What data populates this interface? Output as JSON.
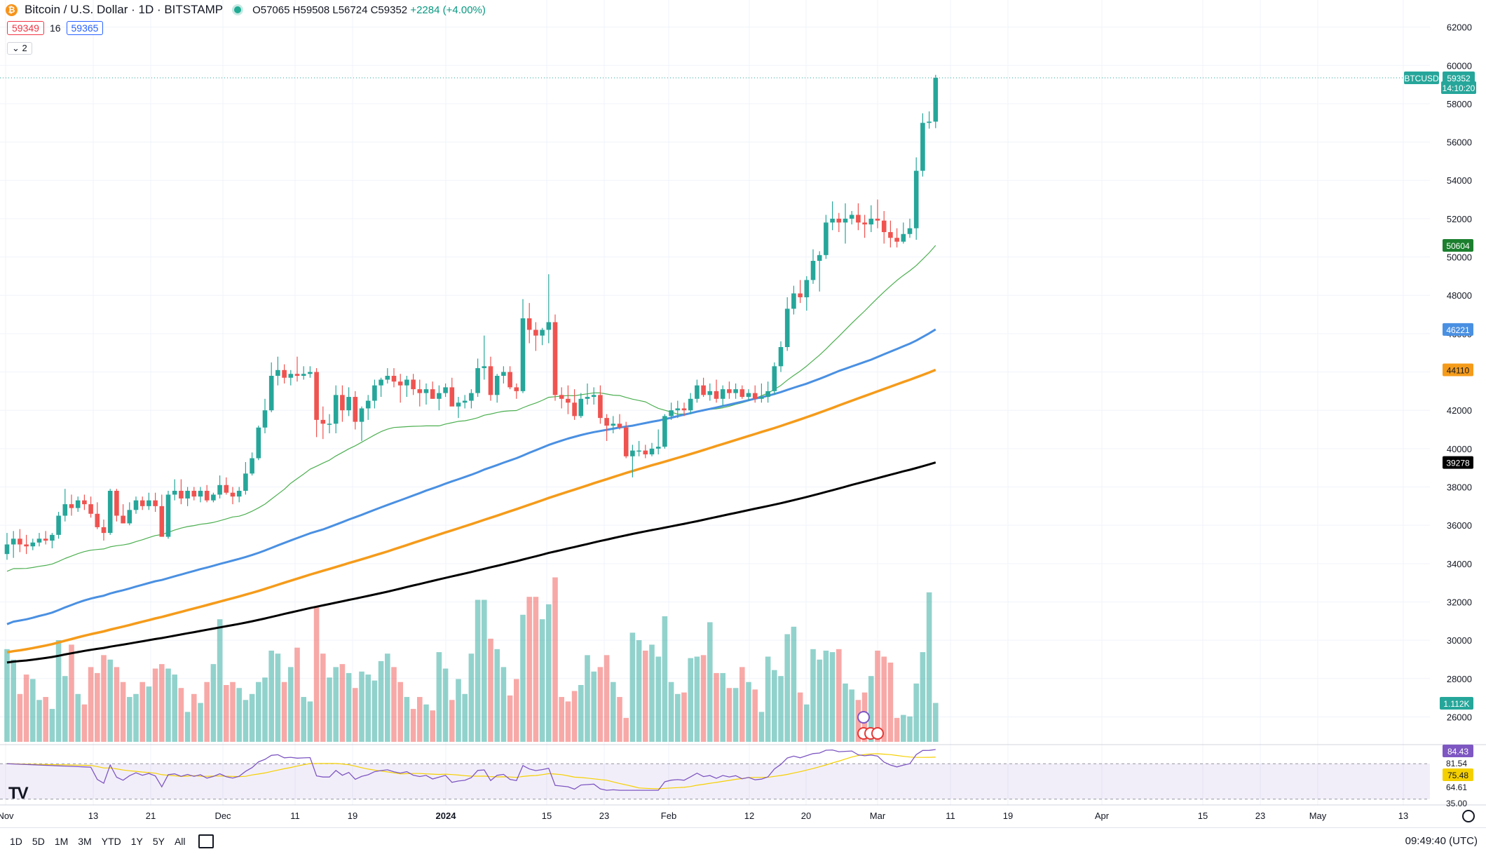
{
  "header": {
    "title": "Bitcoin / U.S. Dollar · 1D · BITSTAMP",
    "open": "O57065",
    "high": "H59508",
    "low": "L56724",
    "close": "C59352",
    "change": "+2284 (+4.00%)",
    "sell_price": "59349",
    "spread": "16",
    "buy_price": "59365",
    "indicators_toggle": "⌄ 2"
  },
  "colors": {
    "up": "#26a69a",
    "down": "#ef5350",
    "ma20": "#4caf50",
    "ma50": "#4a90e2",
    "ma100": "#f59b1a",
    "ma200": "#000000",
    "rsi": "#7e57c2",
    "rsi_ma": "#f5d000"
  },
  "price_axis": {
    "ticks": [
      26000,
      28000,
      30000,
      32000,
      34000,
      36000,
      38000,
      40000,
      42000,
      44000,
      46000,
      48000,
      50000,
      52000,
      54000,
      56000,
      58000,
      60000,
      62000
    ],
    "min": 24700,
    "max": 62900
  },
  "price_badges": {
    "symbol": "BTCUSD",
    "last": "59352",
    "countdown": "14:10:20",
    "ma20": "50604",
    "ma50": "46221",
    "ma100": "44110",
    "ma200": "39278",
    "volume": "1.112K"
  },
  "rsi_axis": {
    "labels": [
      "84.43",
      "81.54",
      "75.48",
      "64.61",
      "35.00"
    ]
  },
  "time_axis": {
    "labels": [
      "Nov",
      "13",
      "21",
      "Dec",
      "11",
      "19",
      "2024",
      "15",
      "23",
      "Feb",
      "12",
      "20",
      "Mar",
      "11",
      "19",
      "Apr",
      "15",
      "23",
      "May",
      "13"
    ]
  },
  "bottom_bar": {
    "ranges": [
      "1D",
      "5D",
      "1M",
      "3M",
      "YTD",
      "1Y",
      "5Y",
      "All"
    ],
    "clock": "09:49:40 (UTC)"
  },
  "chart_data": {
    "type": "candlestick",
    "title": "Bitcoin / U.S. Dollar · 1D · BITSTAMP",
    "candles": [
      {
        "o": 34500,
        "h": 35600,
        "l": 34200,
        "c": 35000,
        "v": 0.62
      },
      {
        "o": 35000,
        "h": 35700,
        "l": 34300,
        "c": 35300,
        "v": 0.55
      },
      {
        "o": 35300,
        "h": 35800,
        "l": 34600,
        "c": 35000,
        "v": 0.32
      },
      {
        "o": 35000,
        "h": 35500,
        "l": 34500,
        "c": 34900,
        "v": 0.45
      },
      {
        "o": 34900,
        "h": 35300,
        "l": 34700,
        "c": 35100,
        "v": 0.42
      },
      {
        "o": 35100,
        "h": 35600,
        "l": 34900,
        "c": 35300,
        "v": 0.28
      },
      {
        "o": 35300,
        "h": 35700,
        "l": 35000,
        "c": 35200,
        "v": 0.3
      },
      {
        "o": 35200,
        "h": 35600,
        "l": 34800,
        "c": 35500,
        "v": 0.22
      },
      {
        "o": 35500,
        "h": 36700,
        "l": 35300,
        "c": 36500,
        "v": 0.68
      },
      {
        "o": 36500,
        "h": 37900,
        "l": 36200,
        "c": 37100,
        "v": 0.44
      },
      {
        "o": 37100,
        "h": 37600,
        "l": 36500,
        "c": 36900,
        "v": 0.65
      },
      {
        "o": 36900,
        "h": 37500,
        "l": 36700,
        "c": 37300,
        "v": 0.32
      },
      {
        "o": 37300,
        "h": 37600,
        "l": 36800,
        "c": 37100,
        "v": 0.25
      },
      {
        "o": 37100,
        "h": 37500,
        "l": 36400,
        "c": 36600,
        "v": 0.5
      },
      {
        "o": 36600,
        "h": 37200,
        "l": 35800,
        "c": 35900,
        "v": 0.46
      },
      {
        "o": 35900,
        "h": 36300,
        "l": 35200,
        "c": 35600,
        "v": 0.58
      },
      {
        "o": 35600,
        "h": 37900,
        "l": 35500,
        "c": 37800,
        "v": 0.55
      },
      {
        "o": 37800,
        "h": 37900,
        "l": 36200,
        "c": 36500,
        "v": 0.5
      },
      {
        "o": 36500,
        "h": 37100,
        "l": 36100,
        "c": 36100,
        "v": 0.4
      },
      {
        "o": 36100,
        "h": 37200,
        "l": 36000,
        "c": 36800,
        "v": 0.3
      },
      {
        "o": 36800,
        "h": 37500,
        "l": 36600,
        "c": 37300,
        "v": 0.32
      },
      {
        "o": 37300,
        "h": 37500,
        "l": 36800,
        "c": 37000,
        "v": 0.4
      },
      {
        "o": 37000,
        "h": 37700,
        "l": 36800,
        "c": 37300,
        "v": 0.37
      },
      {
        "o": 37300,
        "h": 37700,
        "l": 36700,
        "c": 37000,
        "v": 0.49
      },
      {
        "o": 37000,
        "h": 37600,
        "l": 35400,
        "c": 35400,
        "v": 0.52
      },
      {
        "o": 35400,
        "h": 37800,
        "l": 35300,
        "c": 37600,
        "v": 0.49
      },
      {
        "o": 37600,
        "h": 38400,
        "l": 37300,
        "c": 37800,
        "v": 0.45
      },
      {
        "o": 37800,
        "h": 38400,
        "l": 37100,
        "c": 37400,
        "v": 0.36
      },
      {
        "o": 37400,
        "h": 38000,
        "l": 37000,
        "c": 37800,
        "v": 0.2
      },
      {
        "o": 37800,
        "h": 38000,
        "l": 37300,
        "c": 37500,
        "v": 0.32
      },
      {
        "o": 37500,
        "h": 38000,
        "l": 37200,
        "c": 37800,
        "v": 0.26
      },
      {
        "o": 37800,
        "h": 38100,
        "l": 37200,
        "c": 37300,
        "v": 0.4
      },
      {
        "o": 37300,
        "h": 37700,
        "l": 37200,
        "c": 37600,
        "v": 0.52
      },
      {
        "o": 37600,
        "h": 38600,
        "l": 37400,
        "c": 38100,
        "v": 0.82
      },
      {
        "o": 38100,
        "h": 38500,
        "l": 37600,
        "c": 37700,
        "v": 0.38
      },
      {
        "o": 37700,
        "h": 38000,
        "l": 37100,
        "c": 37500,
        "v": 0.4
      },
      {
        "o": 37500,
        "h": 38000,
        "l": 37200,
        "c": 37800,
        "v": 0.36
      },
      {
        "o": 37800,
        "h": 39300,
        "l": 37600,
        "c": 38700,
        "v": 0.28
      },
      {
        "o": 38700,
        "h": 39800,
        "l": 38600,
        "c": 39500,
        "v": 0.32
      },
      {
        "o": 39500,
        "h": 41200,
        "l": 39400,
        "c": 41100,
        "v": 0.4
      },
      {
        "o": 41100,
        "h": 42600,
        "l": 40800,
        "c": 42000,
        "v": 0.43
      },
      {
        "o": 42000,
        "h": 44500,
        "l": 41900,
        "c": 43800,
        "v": 0.61
      },
      {
        "o": 43800,
        "h": 44800,
        "l": 43300,
        "c": 44100,
        "v": 0.59
      },
      {
        "o": 44100,
        "h": 44400,
        "l": 43400,
        "c": 43700,
        "v": 0.4
      },
      {
        "o": 43700,
        "h": 44100,
        "l": 43300,
        "c": 43900,
        "v": 0.5
      },
      {
        "o": 43900,
        "h": 44800,
        "l": 43500,
        "c": 43800,
        "v": 0.63
      },
      {
        "o": 43800,
        "h": 44300,
        "l": 43600,
        "c": 43900,
        "v": 0.3
      },
      {
        "o": 43900,
        "h": 44300,
        "l": 43700,
        "c": 44000,
        "v": 0.27
      },
      {
        "o": 44000,
        "h": 44200,
        "l": 40600,
        "c": 41500,
        "v": 0.9
      },
      {
        "o": 41500,
        "h": 42200,
        "l": 40500,
        "c": 41300,
        "v": 0.59
      },
      {
        "o": 41300,
        "h": 41800,
        "l": 40800,
        "c": 41300,
        "v": 0.43
      },
      {
        "o": 41300,
        "h": 43300,
        "l": 40800,
        "c": 42800,
        "v": 0.5
      },
      {
        "o": 42800,
        "h": 43300,
        "l": 41400,
        "c": 42000,
        "v": 0.52
      },
      {
        "o": 42000,
        "h": 43200,
        "l": 41700,
        "c": 42700,
        "v": 0.46
      },
      {
        "o": 42700,
        "h": 43000,
        "l": 41000,
        "c": 41400,
        "v": 0.36
      },
      {
        "o": 41400,
        "h": 42200,
        "l": 40400,
        "c": 42100,
        "v": 0.47
      },
      {
        "o": 42100,
        "h": 42800,
        "l": 41500,
        "c": 42500,
        "v": 0.45
      },
      {
        "o": 42500,
        "h": 43600,
        "l": 42100,
        "c": 43300,
        "v": 0.41
      },
      {
        "o": 43300,
        "h": 43700,
        "l": 42700,
        "c": 43600,
        "v": 0.54
      },
      {
        "o": 43600,
        "h": 44200,
        "l": 43400,
        "c": 43800,
        "v": 0.59
      },
      {
        "o": 43800,
        "h": 44200,
        "l": 43200,
        "c": 43500,
        "v": 0.5
      },
      {
        "o": 43500,
        "h": 43900,
        "l": 42400,
        "c": 43300,
        "v": 0.4
      },
      {
        "o": 43300,
        "h": 43800,
        "l": 42700,
        "c": 43600,
        "v": 0.3
      },
      {
        "o": 43600,
        "h": 43900,
        "l": 42800,
        "c": 43100,
        "v": 0.22
      },
      {
        "o": 43100,
        "h": 43600,
        "l": 42200,
        "c": 42900,
        "v": 0.3
      },
      {
        "o": 42900,
        "h": 43400,
        "l": 42300,
        "c": 43100,
        "v": 0.25
      },
      {
        "o": 43100,
        "h": 43500,
        "l": 42600,
        "c": 42600,
        "v": 0.21
      },
      {
        "o": 42600,
        "h": 43300,
        "l": 42000,
        "c": 42900,
        "v": 0.6
      },
      {
        "o": 42900,
        "h": 43400,
        "l": 42700,
        "c": 43200,
        "v": 0.49
      },
      {
        "o": 43200,
        "h": 43700,
        "l": 42300,
        "c": 42200,
        "v": 0.28
      },
      {
        "o": 42200,
        "h": 42700,
        "l": 41600,
        "c": 42400,
        "v": 0.42
      },
      {
        "o": 42400,
        "h": 42800,
        "l": 42100,
        "c": 42500,
        "v": 0.32
      },
      {
        "o": 42500,
        "h": 43100,
        "l": 42100,
        "c": 42900,
        "v": 0.59
      },
      {
        "o": 42900,
        "h": 44700,
        "l": 42700,
        "c": 44200,
        "v": 0.95
      },
      {
        "o": 44200,
        "h": 45900,
        "l": 43600,
        "c": 44300,
        "v": 0.95
      },
      {
        "o": 44300,
        "h": 44800,
        "l": 42500,
        "c": 42800,
        "v": 0.69
      },
      {
        "o": 42800,
        "h": 43900,
        "l": 42400,
        "c": 43800,
        "v": 0.62
      },
      {
        "o": 43800,
        "h": 44300,
        "l": 43400,
        "c": 44000,
        "v": 0.5
      },
      {
        "o": 44000,
        "h": 44300,
        "l": 43100,
        "c": 43200,
        "v": 0.31
      },
      {
        "o": 43200,
        "h": 43400,
        "l": 42600,
        "c": 43000,
        "v": 0.42
      },
      {
        "o": 43000,
        "h": 47800,
        "l": 42900,
        "c": 46800,
        "v": 0.85
      },
      {
        "o": 46800,
        "h": 47600,
        "l": 45500,
        "c": 46200,
        "v": 0.97
      },
      {
        "o": 46200,
        "h": 46600,
        "l": 45100,
        "c": 45900,
        "v": 0.97
      },
      {
        "o": 45900,
        "h": 46300,
        "l": 45400,
        "c": 46200,
        "v": 0.82
      },
      {
        "o": 46200,
        "h": 49100,
        "l": 45500,
        "c": 46600,
        "v": 0.92
      },
      {
        "o": 46600,
        "h": 47000,
        "l": 42500,
        "c": 42800,
        "v": 1.1
      },
      {
        "o": 42800,
        "h": 43200,
        "l": 42100,
        "c": 42600,
        "v": 0.3
      },
      {
        "o": 42600,
        "h": 43300,
        "l": 41800,
        "c": 42400,
        "v": 0.27
      },
      {
        "o": 42400,
        "h": 43100,
        "l": 41500,
        "c": 41700,
        "v": 0.34
      },
      {
        "o": 41700,
        "h": 42900,
        "l": 41600,
        "c": 42600,
        "v": 0.38
      },
      {
        "o": 42600,
        "h": 43400,
        "l": 42300,
        "c": 42700,
        "v": 0.58
      },
      {
        "o": 42700,
        "h": 43200,
        "l": 42300,
        "c": 42800,
        "v": 0.47
      },
      {
        "o": 42800,
        "h": 43300,
        "l": 41300,
        "c": 41600,
        "v": 0.5
      },
      {
        "o": 41600,
        "h": 41800,
        "l": 40400,
        "c": 41200,
        "v": 0.58
      },
      {
        "o": 41200,
        "h": 41700,
        "l": 40800,
        "c": 41300,
        "v": 0.4
      },
      {
        "o": 41300,
        "h": 41800,
        "l": 41000,
        "c": 41100,
        "v": 0.3
      },
      {
        "o": 41100,
        "h": 41400,
        "l": 39500,
        "c": 39600,
        "v": 0.16
      },
      {
        "o": 39600,
        "h": 40200,
        "l": 38500,
        "c": 39900,
        "v": 0.73
      },
      {
        "o": 39900,
        "h": 40400,
        "l": 39600,
        "c": 39900,
        "v": 0.68
      },
      {
        "o": 39900,
        "h": 40200,
        "l": 39500,
        "c": 39700,
        "v": 0.61
      },
      {
        "o": 39700,
        "h": 40300,
        "l": 39600,
        "c": 40000,
        "v": 0.65
      },
      {
        "o": 40000,
        "h": 41000,
        "l": 39700,
        "c": 40100,
        "v": 0.57
      },
      {
        "o": 40100,
        "h": 41800,
        "l": 40000,
        "c": 41700,
        "v": 0.84
      },
      {
        "o": 41700,
        "h": 42400,
        "l": 41500,
        "c": 42000,
        "v": 0.4
      },
      {
        "o": 42000,
        "h": 42500,
        "l": 41600,
        "c": 42100,
        "v": 0.32
      },
      {
        "o": 42100,
        "h": 42400,
        "l": 41700,
        "c": 42000,
        "v": 0.33
      },
      {
        "o": 42000,
        "h": 42900,
        "l": 41800,
        "c": 42600,
        "v": 0.56
      },
      {
        "o": 42600,
        "h": 43600,
        "l": 42400,
        "c": 43300,
        "v": 0.57
      },
      {
        "o": 43300,
        "h": 43700,
        "l": 42700,
        "c": 42800,
        "v": 0.58
      },
      {
        "o": 42800,
        "h": 43400,
        "l": 42500,
        "c": 43000,
        "v": 0.8
      },
      {
        "o": 43000,
        "h": 43600,
        "l": 42400,
        "c": 42600,
        "v": 0.46
      },
      {
        "o": 42600,
        "h": 43300,
        "l": 42200,
        "c": 43100,
        "v": 0.46
      },
      {
        "o": 43100,
        "h": 43500,
        "l": 42600,
        "c": 42900,
        "v": 0.36
      },
      {
        "o": 42900,
        "h": 43400,
        "l": 42600,
        "c": 43100,
        "v": 0.36
      },
      {
        "o": 43100,
        "h": 43300,
        "l": 42600,
        "c": 42700,
        "v": 0.5
      },
      {
        "o": 42700,
        "h": 43100,
        "l": 42500,
        "c": 42900,
        "v": 0.4
      },
      {
        "o": 42900,
        "h": 43300,
        "l": 42400,
        "c": 42600,
        "v": 0.35
      },
      {
        "o": 42600,
        "h": 43400,
        "l": 42400,
        "c": 42700,
        "v": 0.2
      },
      {
        "o": 42700,
        "h": 43500,
        "l": 42400,
        "c": 43000,
        "v": 0.57
      },
      {
        "o": 43000,
        "h": 44500,
        "l": 42800,
        "c": 44300,
        "v": 0.48
      },
      {
        "o": 44300,
        "h": 45600,
        "l": 44000,
        "c": 45300,
        "v": 0.44
      },
      {
        "o": 45300,
        "h": 47900,
        "l": 45100,
        "c": 47300,
        "v": 0.72
      },
      {
        "o": 47300,
        "h": 48500,
        "l": 47000,
        "c": 48100,
        "v": 0.77
      },
      {
        "o": 48100,
        "h": 48800,
        "l": 47600,
        "c": 47900,
        "v": 0.33
      },
      {
        "o": 47900,
        "h": 49000,
        "l": 47200,
        "c": 48800,
        "v": 0.25
      },
      {
        "o": 48800,
        "h": 50400,
        "l": 48600,
        "c": 49800,
        "v": 0.62
      },
      {
        "o": 49800,
        "h": 50300,
        "l": 48200,
        "c": 50100,
        "v": 0.55
      },
      {
        "o": 50100,
        "h": 52200,
        "l": 49900,
        "c": 51800,
        "v": 0.61
      },
      {
        "o": 51800,
        "h": 52900,
        "l": 51400,
        "c": 52000,
        "v": 0.6
      },
      {
        "o": 52000,
        "h": 52300,
        "l": 51300,
        "c": 51800,
        "v": 0.62
      },
      {
        "o": 51800,
        "h": 52800,
        "l": 50700,
        "c": 52000,
        "v": 0.39
      },
      {
        "o": 52000,
        "h": 52400,
        "l": 51700,
        "c": 52200,
        "v": 0.35
      },
      {
        "o": 52200,
        "h": 52800,
        "l": 51400,
        "c": 51800,
        "v": 0.28
      },
      {
        "o": 51800,
        "h": 52200,
        "l": 51000,
        "c": 51700,
        "v": 0.33
      },
      {
        "o": 51700,
        "h": 52700,
        "l": 51300,
        "c": 52000,
        "v": 0.44
      },
      {
        "o": 52000,
        "h": 53000,
        "l": 51500,
        "c": 51900,
        "v": 0.61
      },
      {
        "o": 51900,
        "h": 52400,
        "l": 50700,
        "c": 51300,
        "v": 0.57
      },
      {
        "o": 51300,
        "h": 51900,
        "l": 50500,
        "c": 51000,
        "v": 0.53
      },
      {
        "o": 51000,
        "h": 51500,
        "l": 50500,
        "c": 50800,
        "v": 0.16
      },
      {
        "o": 50800,
        "h": 51800,
        "l": 50700,
        "c": 51200,
        "v": 0.18
      },
      {
        "o": 51200,
        "h": 52000,
        "l": 51000,
        "c": 51500,
        "v": 0.17
      },
      {
        "o": 51500,
        "h": 55200,
        "l": 50900,
        "c": 54500,
        "v": 0.39
      },
      {
        "o": 54500,
        "h": 57500,
        "l": 54200,
        "c": 57000,
        "v": 0.6
      },
      {
        "o": 57000,
        "h": 57600,
        "l": 56700,
        "c": 57065,
        "v": 1.0
      },
      {
        "o": 57065,
        "h": 59508,
        "l": 56724,
        "c": 59352,
        "v": 0.26
      }
    ],
    "moving_averages": [
      {
        "name": "MA20",
        "value": 50604
      },
      {
        "name": "MA50",
        "value": 46221
      },
      {
        "name": "MA100",
        "value": 44110
      },
      {
        "name": "MA200",
        "value": 39278
      }
    ],
    "ylim": [
      24700,
      62900
    ]
  }
}
